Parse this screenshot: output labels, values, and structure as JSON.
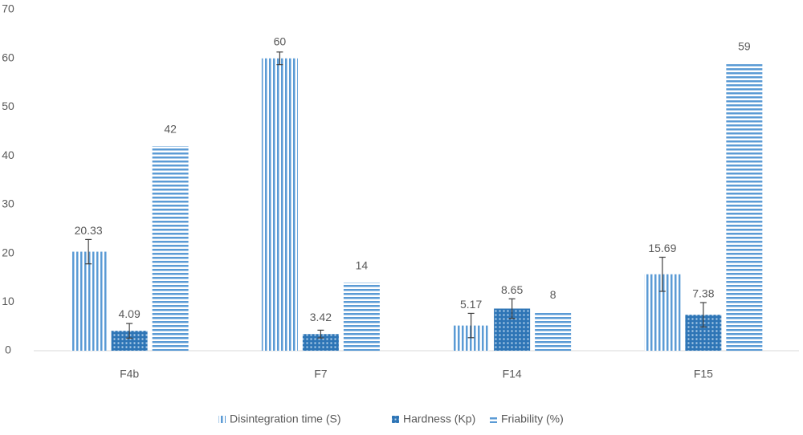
{
  "chart_data": {
    "type": "bar",
    "categories": [
      "F4b",
      "F7",
      "F14",
      "F15"
    ],
    "series": [
      {
        "name": "Disintegration time (S)",
        "color": "#5b9bd5",
        "pattern": "vertical",
        "values": [
          20.33,
          60,
          5.17,
          15.69
        ],
        "errors": [
          2.5,
          1.3,
          2.5,
          3.5
        ]
      },
      {
        "name": "Hardness (Kp)",
        "color": "#2e75b6",
        "pattern": "crosshatch",
        "values": [
          4.09,
          3.42,
          8.65,
          7.38
        ],
        "errors": [
          1.5,
          0.8,
          2,
          2.5
        ]
      },
      {
        "name": "Friability (%)",
        "color": "#5b9bd5",
        "pattern": "horizontal",
        "values": [
          42,
          14,
          8,
          59
        ]
      }
    ],
    "ylim": [
      0,
      70
    ],
    "yticks": [
      0,
      10,
      20,
      30,
      40,
      50,
      60,
      70
    ],
    "grid": false
  }
}
